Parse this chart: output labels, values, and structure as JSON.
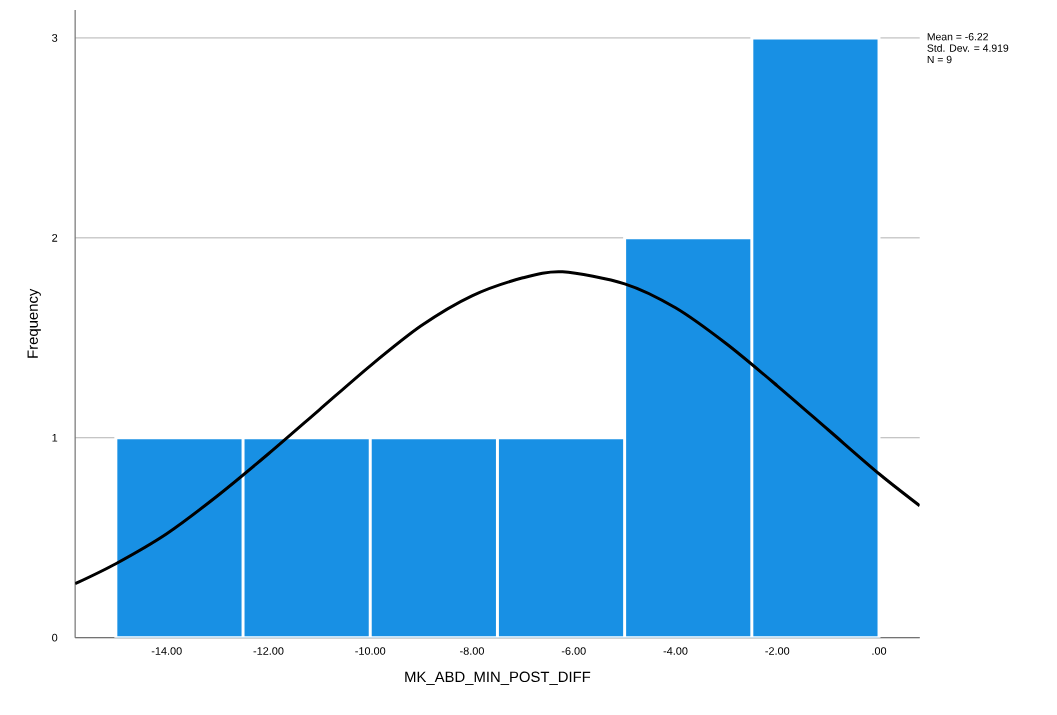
{
  "chart_data": {
    "type": "histogram",
    "xlabel": "MK_ABD_MIN_POST_DIFF",
    "ylabel": "Frequency",
    "annotations": [
      "Mean = -6.22",
      "Std. Dev. = 4.919",
      "N = 9"
    ],
    "bins": [
      -15,
      -12.5,
      -10,
      -7.5,
      -5,
      -2.5,
      0
    ],
    "values": [
      1,
      1,
      1,
      1,
      2,
      3
    ],
    "color": "#1890e4",
    "series": [
      {
        "type": "line",
        "color": "#000000",
        "x": [
          -15.8,
          -15,
          -14,
          -13,
          -12,
          -11,
          -10,
          -9,
          -8,
          -7,
          -6.22,
          -5,
          -4,
          -3,
          -2,
          -1,
          0,
          0.8
        ],
        "values": [
          0.27,
          0.37,
          0.52,
          0.71,
          0.92,
          1.14,
          1.36,
          1.56,
          1.71,
          1.8,
          1.83,
          1.77,
          1.65,
          1.47,
          1.26,
          1.04,
          0.82,
          0.66
        ]
      }
    ],
    "xlim": [
      -15.8,
      0.8
    ],
    "ylim": [
      0,
      3.14
    ],
    "xticks": [
      {
        "value": -14,
        "label": "-14.00"
      },
      {
        "value": -12,
        "label": "-12.00"
      },
      {
        "value": -10,
        "label": "-10.00"
      },
      {
        "value": -8,
        "label": "-8.00"
      },
      {
        "value": -6,
        "label": "-6.00"
      },
      {
        "value": -4,
        "label": "-4.00"
      },
      {
        "value": -2,
        "label": "-2.00"
      },
      {
        "value": 0,
        "label": ".00"
      }
    ],
    "yticks": [
      0,
      1,
      2,
      3
    ],
    "grid": "y",
    "marker": "none"
  }
}
